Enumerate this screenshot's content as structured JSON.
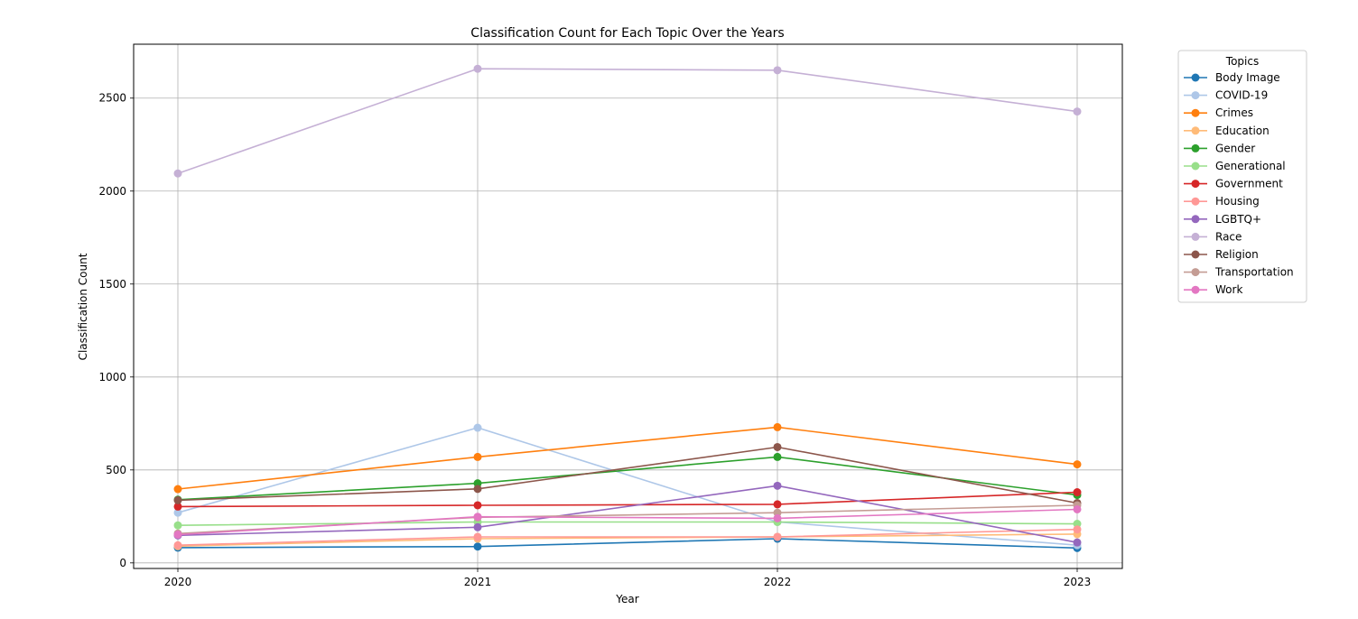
{
  "chart_data": {
    "type": "line",
    "title": "Classification Count for Each Topic Over the Years",
    "xlabel": "Year",
    "ylabel": "Classification Count",
    "x": [
      "2020",
      "2021",
      "2022",
      "2023"
    ],
    "ylim": [
      -30,
      2790
    ],
    "yticks": [
      0,
      500,
      1000,
      1500,
      2000,
      2500
    ],
    "grid": true,
    "marker": "circle",
    "legend": {
      "title": "Topics",
      "placement": "outside-right-top"
    },
    "series": [
      {
        "name": "Body Image",
        "color": "#1f77b4",
        "values": [
          82,
          88,
          130,
          80
        ]
      },
      {
        "name": "COVID-19",
        "color": "#aec7e8",
        "values": [
          270,
          727,
          220,
          95
        ]
      },
      {
        "name": "Crimes",
        "color": "#ff7f0e",
        "values": [
          397,
          570,
          730,
          530
        ]
      },
      {
        "name": "Education",
        "color": "#ffbb78",
        "values": [
          90,
          130,
          140,
          155
        ]
      },
      {
        "name": "Gender",
        "color": "#2ca02c",
        "values": [
          340,
          428,
          570,
          365
        ]
      },
      {
        "name": "Generational",
        "color": "#98df8a",
        "values": [
          202,
          220,
          220,
          210
        ]
      },
      {
        "name": "Government",
        "color": "#d62728",
        "values": [
          303,
          310,
          315,
          380
        ]
      },
      {
        "name": "Housing",
        "color": "#ff9896",
        "values": [
          95,
          140,
          140,
          180
        ]
      },
      {
        "name": "LGBTQ+",
        "color": "#9467bd",
        "values": [
          148,
          192,
          415,
          110
        ]
      },
      {
        "name": "Race",
        "color": "#c5b0d5",
        "values": [
          2095,
          2658,
          2650,
          2428
        ]
      },
      {
        "name": "Religion",
        "color": "#8c564b",
        "values": [
          337,
          398,
          623,
          322
        ]
      },
      {
        "name": "Transportation",
        "color": "#c49c94",
        "values": [
          158,
          245,
          270,
          310
        ]
      },
      {
        "name": "Work",
        "color": "#e377c2",
        "values": [
          152,
          248,
          240,
          288
        ]
      }
    ]
  }
}
